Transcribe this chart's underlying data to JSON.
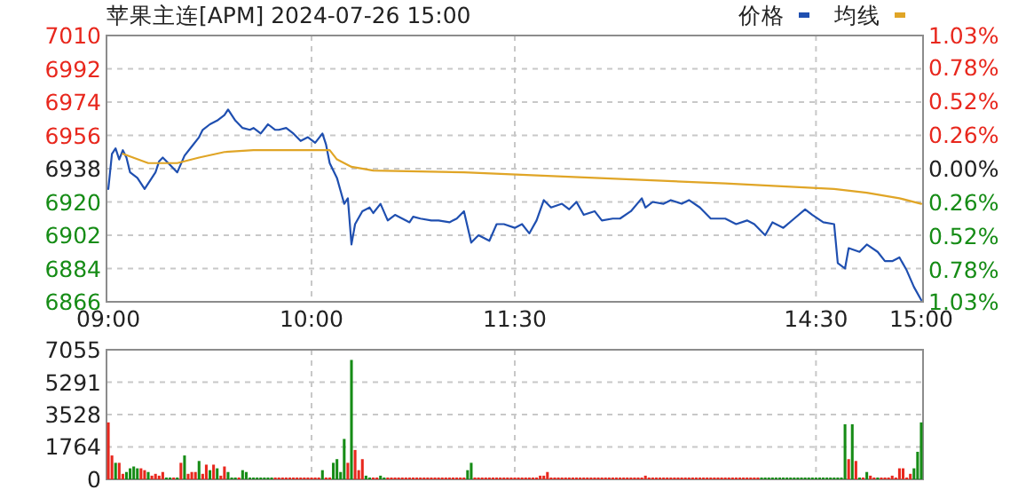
{
  "chart_data": [
    {
      "type": "line",
      "title": "苹果主连[APM] 2024-07-26 15:00",
      "legend": "top right",
      "grid": true,
      "categories": [
        "09:00",
        null,
        null,
        null,
        null,
        null,
        null,
        null,
        null,
        null,
        null,
        null,
        null,
        null,
        null,
        null,
        null,
        null,
        null,
        null,
        null,
        null,
        null,
        null,
        null,
        null,
        null,
        null,
        null,
        null,
        null,
        null,
        null,
        null,
        null,
        null,
        null,
        null,
        null,
        null,
        null,
        null,
        null,
        null,
        null,
        null,
        null,
        null,
        null,
        null,
        null,
        null,
        null,
        null,
        null,
        null,
        "10:00",
        null,
        null,
        null,
        null,
        null,
        null,
        null,
        null,
        null,
        null,
        null,
        null,
        null,
        null,
        null,
        null,
        null,
        null,
        null,
        null,
        null,
        null,
        null,
        null,
        null,
        null,
        null,
        null,
        null,
        null,
        null,
        null,
        null,
        null,
        null,
        null,
        null,
        null,
        null,
        null,
        null,
        null,
        null,
        null,
        null,
        null,
        null,
        null,
        null,
        null,
        null,
        null,
        null,
        null,
        null,
        "11:30",
        null,
        null,
        null,
        null,
        null,
        null,
        null,
        null,
        null,
        null,
        null,
        null,
        null,
        null,
        null,
        null,
        null,
        null,
        null,
        null,
        null,
        null,
        null,
        null,
        null,
        null,
        null,
        null,
        null,
        null,
        null,
        null,
        null,
        null,
        null,
        null,
        null,
        null,
        null,
        null,
        null,
        null,
        null,
        null,
        null,
        null,
        null,
        null,
        null,
        null,
        null,
        null,
        null,
        null,
        null,
        null,
        null,
        null,
        null,
        null,
        null,
        null,
        null,
        null,
        null,
        null,
        null,
        null,
        null,
        null,
        null,
        null,
        null,
        null,
        null,
        null,
        null,
        null,
        null,
        null,
        null,
        null,
        "14:30",
        null,
        null,
        null,
        null,
        null,
        null,
        null,
        null,
        null,
        null,
        null,
        null,
        null,
        null,
        null,
        null,
        null,
        null,
        null,
        null,
        null,
        null,
        null,
        null,
        null,
        null,
        null,
        null,
        "15:00"
      ],
      "ylim": [
        6866,
        7010
      ],
      "yticks": [
        6866,
        6884,
        6902,
        6920,
        6938,
        6956,
        6974,
        6992,
        7010
      ],
      "y2lim": [
        -1.03,
        1.03
      ],
      "y2ticks": [
        {
          "value": -1.03,
          "label": "1.03%"
        },
        {
          "value": -0.78,
          "label": "0.78%"
        },
        {
          "value": -0.52,
          "label": "0.52%"
        },
        {
          "value": -0.26,
          "label": "0.26%"
        },
        {
          "value": 0,
          "label": "0.00%"
        },
        {
          "value": 0.26,
          "label": "0.26%"
        },
        {
          "value": 0.52,
          "label": "0.52%"
        },
        {
          "value": 0.78,
          "label": "0.78%"
        },
        {
          "value": 1.03,
          "label": "1.03%"
        }
      ],
      "series": [
        {
          "name": "价格",
          "color": "#1f4fb0",
          "values": [
            6927,
            6946,
            6949,
            6943,
            6948,
            6944,
            6936,
            null,
            6933,
            null,
            6927,
            null,
            null,
            6936,
            6942,
            6944,
            null,
            6940,
            null,
            6936,
            null,
            6945,
            null,
            6950,
            null,
            6955,
            6959,
            null,
            6962,
            null,
            6964,
            null,
            6967,
            6970,
            null,
            6964,
            null,
            6960,
            null,
            6959,
            6960,
            null,
            6957,
            null,
            6962,
            null,
            6959,
            6959,
            null,
            6960,
            null,
            6957,
            null,
            6953,
            null,
            6955,
            null,
            6952,
            null,
            6957,
            6951,
            6941,
            null,
            6933,
            6926,
            6919,
            6922,
            6897,
            6908,
            null,
            6915,
            null,
            6917,
            6914,
            null,
            6919,
            null,
            6910,
            null,
            6913,
            null,
            6911,
            null,
            6909,
            6912,
            null,
            6911,
            null,
            null,
            6910,
            null,
            6910,
            null,
            null,
            6909,
            null,
            6911,
            null,
            6915,
            null,
            6898,
            null,
            6902,
            null,
            null,
            6899,
            null,
            6908,
            null,
            6908,
            null,
            null,
            6906,
            null,
            6908,
            null,
            6903,
            null,
            6910,
            null,
            6921,
            null,
            6917,
            null,
            null,
            6919,
            null,
            6916,
            null,
            6920,
            null,
            6913,
            null,
            null,
            6915,
            null,
            6910,
            null,
            null,
            6911,
            null,
            6911,
            null,
            null,
            6915,
            null,
            null,
            6922,
            6917,
            null,
            6920,
            null,
            null,
            6919,
            null,
            6921,
            null,
            null,
            6919,
            null,
            6921,
            null,
            null,
            6917,
            null,
            null,
            6911,
            null,
            null,
            null,
            6911,
            null,
            null,
            6908,
            null,
            null,
            6910,
            null,
            6908,
            null,
            null,
            6902,
            null,
            6909,
            null,
            null,
            6906,
            null,
            null,
            6911,
            null,
            null,
            6916,
            null,
            6913,
            null,
            null,
            6909,
            null,
            null,
            6908,
            6887,
            null,
            6884,
            6895,
            null,
            null,
            6893,
            null,
            6897,
            null,
            null,
            6893,
            null,
            6888,
            null,
            6888,
            null,
            6890,
            null,
            6883,
            null,
            6874,
            null,
            6867
          ]
        },
        {
          "name": "均线",
          "color": "#e0a526",
          "values": [
            null,
            null,
            null,
            null,
            6946,
            null,
            null,
            null,
            null,
            null,
            null,
            6941,
            null,
            null,
            null,
            null,
            null,
            null,
            null,
            6941,
            null,
            null,
            null,
            null,
            null,
            6944,
            null,
            null,
            null,
            null,
            null,
            null,
            6947,
            null,
            null,
            null,
            null,
            null,
            null,
            null,
            6948,
            null,
            null,
            null,
            null,
            null,
            null,
            null,
            null,
            null,
            null,
            null,
            null,
            null,
            null,
            null,
            null,
            null,
            6948,
            null,
            null,
            6948,
            null,
            6943,
            null,
            null,
            null,
            6939,
            null,
            null,
            null,
            null,
            null,
            6937,
            null,
            null,
            null,
            null,
            null,
            null,
            null,
            null,
            null,
            null,
            null,
            null,
            null,
            null,
            null,
            null,
            null,
            null,
            null,
            null,
            null,
            null,
            null,
            null,
            6936,
            null,
            null,
            null,
            null,
            null,
            null,
            null,
            null,
            null,
            null,
            null,
            null,
            null,
            null,
            null,
            null,
            null,
            null,
            null,
            null,
            null,
            null,
            null,
            null,
            null,
            null,
            null,
            null,
            null,
            null,
            null,
            null,
            null,
            null,
            null,
            6933,
            null,
            null,
            null,
            null,
            null,
            null,
            null,
            null,
            null,
            null,
            null,
            null,
            null,
            null,
            null,
            null,
            null,
            null,
            null,
            null,
            null,
            null,
            null,
            null,
            null,
            null,
            null,
            null,
            null,
            null,
            null,
            null,
            null,
            null,
            null,
            6930,
            null,
            null,
            null,
            null,
            null,
            null,
            null,
            null,
            null,
            null,
            null,
            null,
            null,
            null,
            null,
            null,
            null,
            null,
            null,
            null,
            null,
            null,
            null,
            null,
            null,
            null,
            null,
            null,
            null,
            6927,
            null,
            null,
            null,
            null,
            null,
            null,
            null,
            null,
            6925,
            null,
            null,
            null,
            null,
            null,
            null,
            null,
            null,
            6922,
            null,
            null,
            null,
            null,
            null,
            6919
          ]
        }
      ]
    },
    {
      "type": "bar",
      "grid": true,
      "tick_labels": "y",
      "categories": [
        null,
        null,
        null,
        null,
        null,
        null,
        null,
        null,
        null,
        null,
        null,
        null,
        null,
        null,
        null,
        null,
        null,
        null,
        null,
        null,
        null,
        null,
        null,
        null,
        null,
        null,
        null,
        null,
        null,
        null,
        null,
        null,
        null,
        null,
        null,
        null,
        null,
        null,
        null,
        null,
        null,
        null,
        null,
        null,
        null,
        null,
        null,
        null,
        null,
        null,
        null,
        null,
        null,
        null,
        null,
        null,
        null,
        null,
        null,
        null,
        null,
        null,
        null,
        null,
        null,
        null,
        null,
        null,
        null,
        null,
        null,
        null,
        null,
        null,
        null,
        null,
        null,
        null,
        null,
        null,
        null,
        null,
        null,
        null,
        null,
        null,
        null,
        null,
        null,
        null,
        null,
        null,
        null,
        null,
        null,
        null,
        null,
        null,
        null,
        null,
        null,
        null,
        null,
        null,
        null,
        null,
        null,
        null,
        null,
        null,
        null,
        null,
        null,
        null,
        null,
        null,
        null,
        null,
        null,
        null,
        null,
        null,
        null,
        null,
        null,
        null,
        null,
        null,
        null,
        null,
        null,
        null,
        null,
        null,
        null,
        null,
        null,
        null,
        null,
        null,
        null,
        null,
        null,
        null,
        null,
        null,
        null,
        null,
        null,
        null,
        null,
        null,
        null,
        null,
        null,
        null,
        null,
        null,
        null,
        null,
        null,
        null,
        null,
        null,
        null,
        null,
        null,
        null,
        null,
        null,
        null,
        null,
        null,
        null,
        null,
        null,
        null,
        null,
        null,
        null,
        null,
        null,
        null,
        null,
        null,
        null,
        null,
        null,
        null,
        null,
        null,
        null,
        null,
        null,
        null,
        null,
        null,
        null,
        null,
        null,
        null,
        null,
        null,
        null,
        null,
        null,
        null,
        null,
        null,
        null,
        null,
        null,
        null,
        null,
        null,
        null,
        null,
        null,
        null,
        null,
        null,
        null,
        null,
        null,
        null
      ],
      "ylim": [
        0,
        7055
      ],
      "yticks": [
        0,
        1764,
        3528,
        5291,
        7055
      ],
      "values": [
        3100,
        1300,
        900,
        900,
        300,
        400,
        600,
        700,
        600,
        600,
        500,
        400,
        200,
        300,
        200,
        400,
        100,
        100,
        100,
        100,
        900,
        1300,
        300,
        400,
        400,
        1000,
        300,
        800,
        500,
        800,
        600,
        200,
        700,
        400,
        100,
        100,
        100,
        500,
        400,
        100,
        100,
        100,
        100,
        100,
        100,
        100,
        100,
        100,
        100,
        100,
        100,
        100,
        100,
        100,
        100,
        100,
        100,
        100,
        100,
        500,
        100,
        100,
        900,
        1100,
        400,
        2200,
        900,
        6500,
        1600,
        500,
        1100,
        200,
        100,
        100,
        100,
        200,
        100,
        100,
        100,
        100,
        100,
        100,
        100,
        100,
        100,
        100,
        100,
        100,
        100,
        100,
        100,
        100,
        100,
        100,
        100,
        100,
        100,
        100,
        100,
        500,
        900,
        100,
        100,
        100,
        100,
        100,
        100,
        100,
        100,
        100,
        100,
        100,
        100,
        100,
        100,
        100,
        100,
        100,
        100,
        200,
        200,
        400,
        100,
        100,
        100,
        100,
        100,
        100,
        100,
        100,
        100,
        100,
        100,
        100,
        100,
        100,
        100,
        100,
        100,
        100,
        100,
        100,
        100,
        100,
        100,
        100,
        100,
        100,
        200,
        100,
        100,
        100,
        100,
        100,
        100,
        100,
        100,
        100,
        100,
        100,
        100,
        100,
        100,
        100,
        100,
        100,
        100,
        100,
        100,
        100,
        100,
        100,
        100,
        100,
        100,
        100,
        100,
        100,
        100,
        100,
        100,
        100,
        100,
        100,
        100,
        100,
        100,
        100,
        100,
        100,
        100,
        100,
        100,
        100,
        100,
        100,
        100,
        100,
        100,
        100,
        100,
        100,
        100,
        3000,
        1100,
        3000,
        1000,
        100,
        100,
        400,
        200,
        100,
        100,
        100,
        100,
        100,
        200,
        100,
        600,
        600,
        100,
        300,
        600,
        1500,
        3100
      ],
      "colors": [
        "#e8281e",
        "#e8281e",
        "#168c16",
        "#e8281e",
        "#e8281e",
        "#168c16",
        "#168c16",
        "#168c16",
        "#168c16",
        "#e8281e",
        "#e8281e",
        "#168c16",
        "#e8281e",
        "#e8281e",
        "#e8281e",
        "#e8281e",
        "#168c16",
        "#168c16",
        "#e8281e",
        "#168c16",
        "#e8281e",
        "#168c16",
        "#e8281e",
        "#e8281e",
        "#e8281e",
        "#168c16",
        "#e8281e",
        "#e8281e",
        "#168c16",
        "#e8281e",
        "#168c16",
        "#e8281e",
        "#e8281e",
        "#168c16",
        "#168c16",
        "#168c16",
        "#e8281e",
        "#168c16",
        "#168c16",
        "#168c16",
        "#168c16",
        "#168c16",
        "#168c16",
        "#168c16",
        "#168c16",
        "#168c16",
        "#e8281e",
        "#e8281e",
        "#e8281e",
        "#e8281e",
        "#e8281e",
        "#e8281e",
        "#e8281e",
        "#e8281e",
        "#e8281e",
        "#e8281e",
        "#e8281e",
        "#e8281e",
        "#e8281e",
        "#168c16",
        "#e8281e",
        "#e8281e",
        "#168c16",
        "#168c16",
        "#168c16",
        "#168c16",
        "#e8281e",
        "#168c16",
        "#e8281e",
        "#e8281e",
        "#e8281e",
        "#168c16",
        "#168c16",
        "#e8281e",
        "#e8281e",
        "#168c16",
        "#168c16",
        "#e8281e",
        "#e8281e",
        "#e8281e",
        "#e8281e",
        "#e8281e",
        "#e8281e",
        "#e8281e",
        "#e8281e",
        "#e8281e",
        "#e8281e",
        "#e8281e",
        "#e8281e",
        "#e8281e",
        "#e8281e",
        "#e8281e",
        "#e8281e",
        "#e8281e",
        "#e8281e",
        "#e8281e",
        "#e8281e",
        "#e8281e",
        "#e8281e",
        "#168c16",
        "#168c16",
        "#e8281e",
        "#e8281e",
        "#e8281e",
        "#e8281e",
        "#e8281e",
        "#e8281e",
        "#e8281e",
        "#e8281e",
        "#e8281e",
        "#e8281e",
        "#e8281e",
        "#e8281e",
        "#e8281e",
        "#e8281e",
        "#e8281e",
        "#e8281e",
        "#e8281e",
        "#e8281e",
        "#e8281e",
        "#e8281e",
        "#e8281e",
        "#e8281e",
        "#e8281e",
        "#e8281e",
        "#e8281e",
        "#e8281e",
        "#e8281e",
        "#e8281e",
        "#e8281e",
        "#e8281e",
        "#e8281e",
        "#e8281e",
        "#e8281e",
        "#e8281e",
        "#e8281e",
        "#e8281e",
        "#e8281e",
        "#e8281e",
        "#e8281e",
        "#e8281e",
        "#e8281e",
        "#e8281e",
        "#e8281e",
        "#e8281e",
        "#e8281e",
        "#e8281e",
        "#e8281e",
        "#e8281e",
        "#e8281e",
        "#e8281e",
        "#e8281e",
        "#e8281e",
        "#e8281e",
        "#e8281e",
        "#e8281e",
        "#e8281e",
        "#e8281e",
        "#e8281e",
        "#e8281e",
        "#e8281e",
        "#e8281e",
        "#e8281e",
        "#e8281e",
        "#e8281e",
        "#e8281e",
        "#e8281e",
        "#e8281e",
        "#e8281e",
        "#e8281e",
        "#e8281e",
        "#e8281e",
        "#e8281e",
        "#e8281e",
        "#e8281e",
        "#e8281e",
        "#e8281e",
        "#e8281e",
        "#e8281e",
        "#e8281e",
        "#168c16",
        "#168c16",
        "#168c16",
        "#168c16",
        "#168c16",
        "#168c16",
        "#168c16",
        "#168c16",
        "#168c16",
        "#168c16",
        "#168c16",
        "#168c16",
        "#168c16",
        "#168c16",
        "#168c16",
        "#168c16",
        "#168c16",
        "#168c16",
        "#168c16",
        "#168c16",
        "#168c16",
        "#168c16",
        "#168c16",
        "#168c16",
        "#e8281e",
        "#168c16",
        "#e8281e",
        "#168c16",
        "#e8281e",
        "#168c16",
        "#e8281e",
        "#e8281e",
        "#168c16",
        "#e8281e",
        "#e8281e",
        "#e8281e",
        "#e8281e",
        "#e8281e",
        "#e8281e",
        "#e8281e",
        "#e8281e",
        "#e8281e",
        "#168c16",
        "#168c16",
        "#168c16"
      ]
    }
  ]
}
